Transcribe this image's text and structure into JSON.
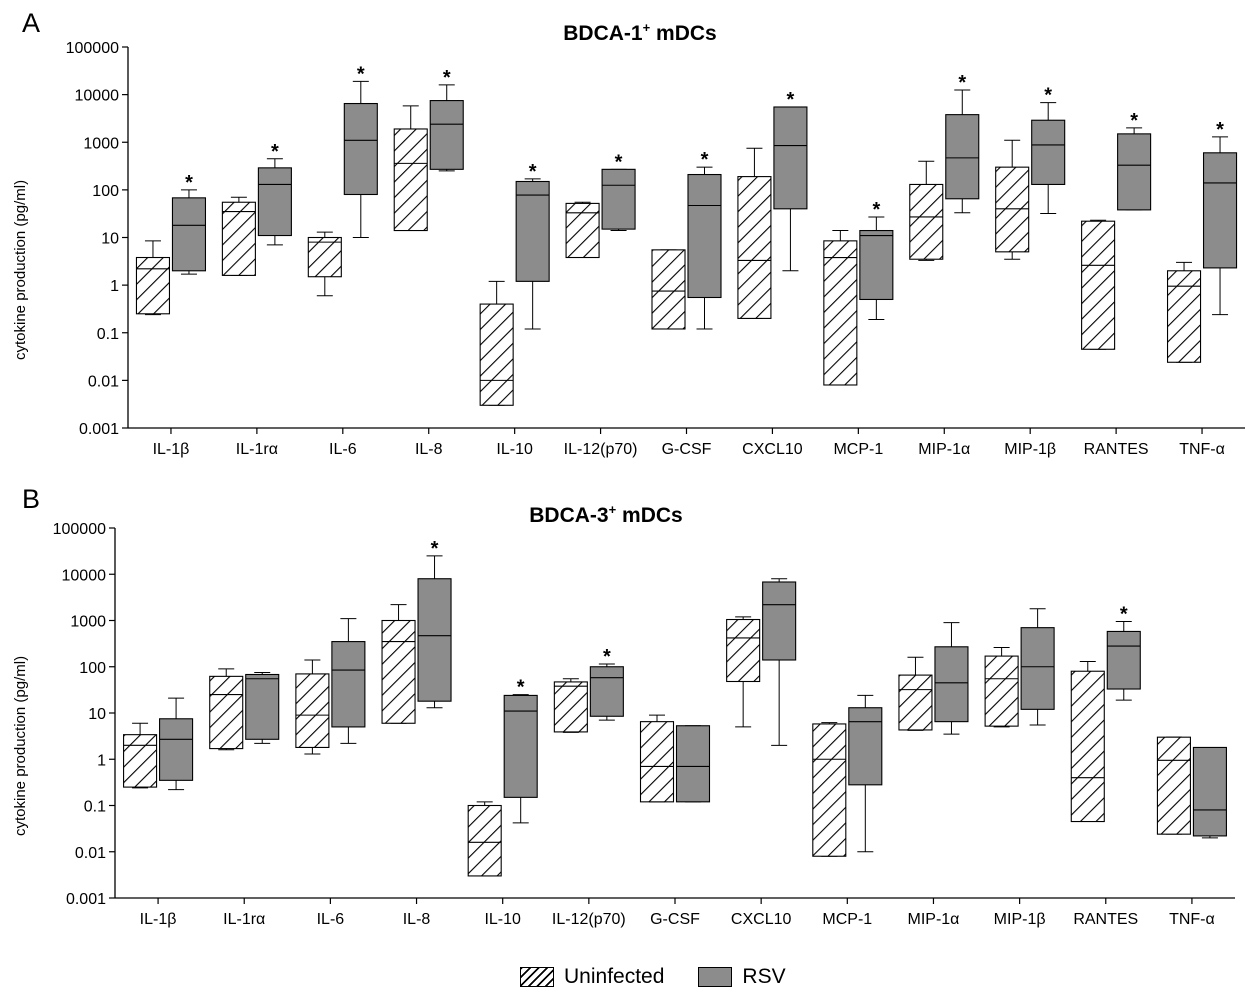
{
  "panels": [
    {
      "letter": "A",
      "title_main": "BDCA-1",
      "title_sup": "+",
      "title_rest": " mDCs"
    },
    {
      "letter": "B",
      "title_main": "BDCA-3",
      "title_sup": "+",
      "title_rest": " mDCs"
    }
  ],
  "ylabel": "cytokine production (pg/ml)",
  "legend": {
    "uninfected": "Uninfected",
    "rsv": "RSV"
  },
  "colors": {
    "rsv_fill": "#8c8c8c",
    "hatch": "#000000"
  },
  "chart_data": [
    {
      "type": "box",
      "title": "BDCA-1+ mDCs",
      "ylabel": "cytokine production (pg/ml)",
      "yscale": "log",
      "ylim": [
        0.001,
        100000
      ],
      "yticks": [
        "0.001",
        "0.01",
        "0.1",
        "1",
        "10",
        "100",
        "1000",
        "10000",
        "100000"
      ],
      "categories": [
        "IL-1β",
        "IL-1rα",
        "IL-6",
        "IL-8",
        "IL-10",
        "IL-12(p70)",
        "G-CSF",
        "CXCL10",
        "MCP-1",
        "MIP-1α",
        "MIP-1β",
        "RANTES",
        "TNF-α"
      ],
      "series": [
        {
          "name": "Uninfected",
          "boxes": [
            [
              0.24,
              0.25,
              2.2,
              3.8,
              8.5
            ],
            [
              1.6,
              1.6,
              35,
              55,
              70
            ],
            [
              0.6,
              1.5,
              8,
              10,
              13
            ],
            [
              14,
              14,
              360,
              1900,
              5800
            ],
            [
              0.003,
              0.003,
              0.01,
              0.4,
              1.2
            ],
            [
              3.8,
              3.8,
              33,
              52,
              55
            ],
            [
              0.12,
              0.12,
              0.75,
              5.5,
              5.5
            ],
            [
              0.2,
              0.2,
              3.3,
              190,
              750
            ],
            [
              0.008,
              0.008,
              3.8,
              8.5,
              14
            ],
            [
              3.3,
              3.5,
              27,
              130,
              400
            ],
            [
              3.5,
              5,
              40,
              300,
              1100
            ],
            [
              0.045,
              0.045,
              2.6,
              22,
              23
            ],
            [
              0.024,
              0.024,
              0.95,
              2,
              3
            ]
          ]
        },
        {
          "name": "RSV",
          "boxes": [
            [
              1.7,
              2,
              18,
              68,
              100
            ],
            [
              7,
              11,
              130,
              290,
              450
            ],
            [
              10,
              80,
              1100,
              6500,
              19000
            ],
            [
              250,
              270,
              2400,
              7500,
              16000
            ],
            [
              0.12,
              1.2,
              78,
              150,
              170
            ],
            [
              14,
              15,
              125,
              270,
              270
            ],
            [
              0.12,
              0.55,
              47,
              210,
              300
            ],
            [
              2,
              40,
              850,
              5500,
              5500
            ],
            [
              0.19,
              0.5,
              11,
              14,
              27
            ],
            [
              33,
              65,
              470,
              3800,
              12500
            ],
            [
              32,
              130,
              880,
              2900,
              6800
            ],
            [
              38,
              38,
              330,
              1500,
              2000
            ],
            [
              0.24,
              2.3,
              140,
              600,
              1300
            ]
          ]
        }
      ],
      "significance": [
        true,
        true,
        true,
        true,
        true,
        true,
        true,
        true,
        true,
        true,
        true,
        true,
        true
      ]
    },
    {
      "type": "box",
      "title": "BDCA-3+ mDCs",
      "ylabel": "cytokine production (pg/ml)",
      "yscale": "log",
      "ylim": [
        0.001,
        100000
      ],
      "yticks": [
        "0.001",
        "0.01",
        "0.1",
        "1",
        "10",
        "100",
        "1000",
        "10000",
        "100000"
      ],
      "categories": [
        "IL-1β",
        "IL-1rα",
        "IL-6",
        "IL-8",
        "IL-10",
        "IL-12(p70)",
        "G-CSF",
        "CXCL10",
        "MCP-1",
        "MIP-1α",
        "MIP-1β",
        "RANTES",
        "TNF-α"
      ],
      "series": [
        {
          "name": "Uninfected",
          "boxes": [
            [
              0.24,
              0.25,
              2,
              3.4,
              6
            ],
            [
              1.6,
              1.7,
              25,
              62,
              90
            ],
            [
              1.3,
              1.8,
              9,
              70,
              140
            ],
            [
              6,
              6,
              350,
              1000,
              2200
            ],
            [
              0.003,
              0.003,
              0.016,
              0.1,
              0.12
            ],
            [
              3.8,
              3.9,
              38,
              47,
              55
            ],
            [
              0.12,
              0.12,
              0.7,
              6.5,
              9
            ],
            [
              5,
              48,
              420,
              1050,
              1200
            ],
            [
              0.008,
              0.008,
              1,
              5.8,
              6.2
            ],
            [
              4.2,
              4.3,
              32,
              66,
              160
            ],
            [
              5,
              5.2,
              55,
              170,
              260
            ],
            [
              0.045,
              0.045,
              0.4,
              80,
              130
            ],
            [
              0.024,
              0.024,
              0.95,
              3,
              3
            ]
          ]
        },
        {
          "name": "RSV",
          "boxes": [
            [
              0.22,
              0.35,
              2.7,
              7.5,
              21
            ],
            [
              2.2,
              2.7,
              55,
              68,
              75
            ],
            [
              2.2,
              5,
              85,
              350,
              1100
            ],
            [
              13,
              18,
              470,
              8000,
              25000
            ],
            [
              0.042,
              0.15,
              11,
              24,
              25
            ],
            [
              7,
              8.5,
              58,
              100,
              115
            ],
            [
              0.12,
              0.12,
              0.7,
              5.3,
              5.3
            ],
            [
              2,
              140,
              2200,
              6800,
              8000
            ],
            [
              0.01,
              0.28,
              6.5,
              13,
              24
            ],
            [
              3.5,
              6.5,
              45,
              270,
              900
            ],
            [
              5.5,
              12,
              100,
              700,
              1800
            ],
            [
              19,
              33,
              280,
              580,
              950
            ],
            [
              0.02,
              0.022,
              0.08,
              1.8,
              1.8
            ]
          ]
        }
      ],
      "significance": [
        false,
        false,
        false,
        true,
        true,
        true,
        false,
        false,
        false,
        false,
        false,
        true,
        false
      ]
    }
  ]
}
